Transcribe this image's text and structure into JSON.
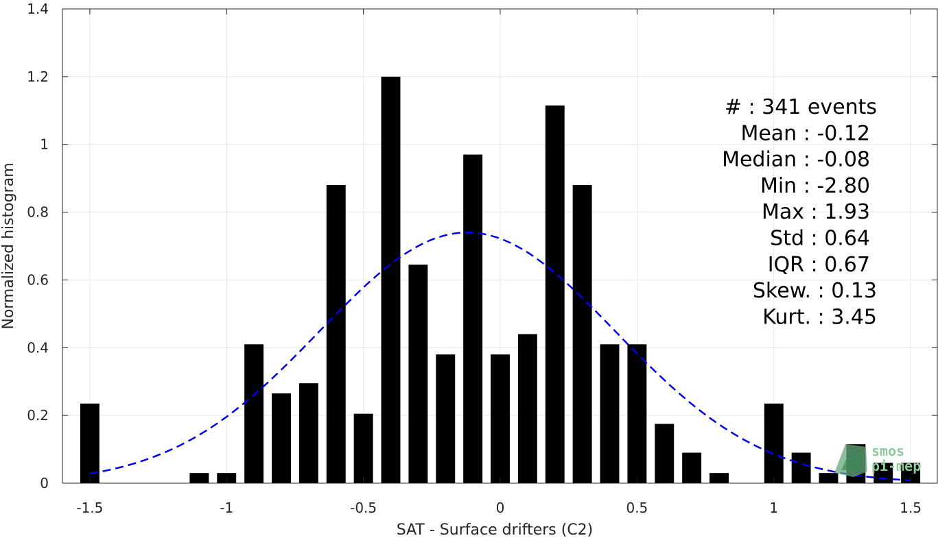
{
  "chart_data": {
    "type": "bar",
    "xlabel": "SAT - Surface drifters (C2)",
    "ylabel": "Normalized histogram",
    "xlim": [
      -1.6,
      1.6
    ],
    "ylim": [
      0,
      1.4
    ],
    "xticks": [
      -1.5,
      -1,
      -0.5,
      0,
      0.5,
      1,
      1.5
    ],
    "xtick_labels": [
      "-1.5",
      "-1",
      "-0.5",
      "0",
      "0.5",
      "1",
      "1.5"
    ],
    "yticks": [
      0,
      0.2,
      0.4,
      0.6,
      0.8,
      1,
      1.2,
      1.4
    ],
    "ytick_labels": [
      "0",
      "0.2",
      "0.4",
      "0.6",
      "0.8",
      "1",
      "1.2",
      "1.4"
    ],
    "grid": true,
    "bar_color": "#000000",
    "bar_width": 0.07,
    "bins": [
      {
        "x": -1.5,
        "y": 0.235
      },
      {
        "x": -1.4,
        "y": 0
      },
      {
        "x": -1.3,
        "y": 0
      },
      {
        "x": -1.2,
        "y": 0
      },
      {
        "x": -1.1,
        "y": 0.03
      },
      {
        "x": -1.0,
        "y": 0.03
      },
      {
        "x": -0.9,
        "y": 0.41
      },
      {
        "x": -0.8,
        "y": 0.265
      },
      {
        "x": -0.7,
        "y": 0.295
      },
      {
        "x": -0.6,
        "y": 0.88
      },
      {
        "x": -0.5,
        "y": 0.205
      },
      {
        "x": -0.4,
        "y": 1.2
      },
      {
        "x": -0.3,
        "y": 0.645
      },
      {
        "x": -0.2,
        "y": 0.38
      },
      {
        "x": -0.1,
        "y": 0.97
      },
      {
        "x": 0.0,
        "y": 0.38
      },
      {
        "x": 0.1,
        "y": 0.44
      },
      {
        "x": 0.2,
        "y": 1.115
      },
      {
        "x": 0.3,
        "y": 0.88
      },
      {
        "x": 0.4,
        "y": 0.41
      },
      {
        "x": 0.5,
        "y": 0.41
      },
      {
        "x": 0.6,
        "y": 0.175
      },
      {
        "x": 0.7,
        "y": 0.09
      },
      {
        "x": 0.8,
        "y": 0.03
      },
      {
        "x": 0.9,
        "y": 0
      },
      {
        "x": 1.0,
        "y": 0.235
      },
      {
        "x": 1.1,
        "y": 0.09
      },
      {
        "x": 1.2,
        "y": 0.03
      },
      {
        "x": 1.3,
        "y": 0.115
      },
      {
        "x": 1.4,
        "y": 0.06
      },
      {
        "x": 1.5,
        "y": 0.06
      }
    ],
    "fit": {
      "type": "gaussian",
      "mean": -0.12,
      "std": 0.54,
      "peak": 0.74,
      "x_range": [
        -1.5,
        1.5
      ],
      "color": "#0000ee",
      "line_style": "dashed"
    },
    "stats": [
      "#  : 341 events",
      "Mean : -0.12",
      "Median : -0.08",
      "Min : -2.80",
      "Max : 1.93",
      "Std : 0.64",
      "IQR : 0.67",
      "Skew. : 0.13",
      "Kurt. : 3.45"
    ]
  },
  "logo": {
    "line1": "smos",
    "line2": "pi-mep",
    "color": "#8ccc9c"
  }
}
